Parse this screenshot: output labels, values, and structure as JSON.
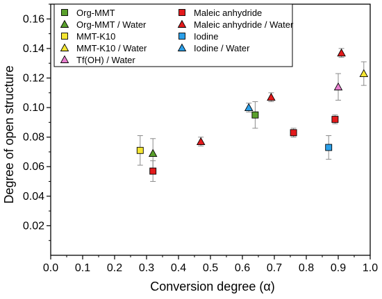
{
  "chart_data": {
    "type": "scatter",
    "title": "",
    "xlabel": "Conversion degree (α)",
    "ylabel": "Degree of open structure",
    "xlim": [
      0.0,
      1.0
    ],
    "ylim": [
      0.0,
      0.17
    ],
    "x_ticks": [
      "0.0",
      "0.1",
      "0.2",
      "0.3",
      "0.4",
      "0.5",
      "0.6",
      "0.7",
      "0.8",
      "0.9",
      "1.0"
    ],
    "y_ticks": [
      "0.02",
      "0.04",
      "0.06",
      "0.08",
      "0.10",
      "0.12",
      "0.14",
      "0.16"
    ],
    "grid": false,
    "legend_placement": "top-left, inside plot, two columns",
    "series": [
      {
        "name": "Org-MMT",
        "marker": "square",
        "color": "#5aa02c",
        "points": [
          {
            "x": 0.64,
            "y": 0.095,
            "err": 0.009
          }
        ]
      },
      {
        "name": "Org-MMT / Water",
        "marker": "triangle",
        "color": "#5aa02c",
        "points": [
          {
            "x": 0.32,
            "y": 0.069,
            "err": 0.01
          }
        ]
      },
      {
        "name": "MMT-K10",
        "marker": "square",
        "color": "#f5e633",
        "points": [
          {
            "x": 0.28,
            "y": 0.071,
            "err": 0.01
          }
        ]
      },
      {
        "name": "MMT-K10 / Water",
        "marker": "triangle",
        "color": "#f5e633",
        "points": [
          {
            "x": 0.98,
            "y": 0.123,
            "err": 0.008
          }
        ]
      },
      {
        "name": "Tf(OH) / Water",
        "marker": "triangle",
        "color": "#e87fcf",
        "points": [
          {
            "x": 0.9,
            "y": 0.114,
            "err": 0.009
          }
        ]
      },
      {
        "name": "Maleic anhydride",
        "marker": "square",
        "color": "#e31a1c",
        "points": [
          {
            "x": 0.32,
            "y": 0.057,
            "err": 0.007
          },
          {
            "x": 0.76,
            "y": 0.083,
            "err": 0.003
          },
          {
            "x": 0.89,
            "y": 0.092,
            "err": 0.003
          }
        ]
      },
      {
        "name": "Maleic anhydride / Water",
        "marker": "triangle",
        "color": "#e31a1c",
        "points": [
          {
            "x": 0.47,
            "y": 0.077,
            "err": 0.003
          },
          {
            "x": 0.69,
            "y": 0.107,
            "err": 0.003
          },
          {
            "x": 0.91,
            "y": 0.137,
            "err": 0.003
          }
        ]
      },
      {
        "name": "Iodine",
        "marker": "square",
        "color": "#2b9fe8",
        "points": [
          {
            "x": 0.87,
            "y": 0.073,
            "err": 0.008
          }
        ]
      },
      {
        "name": "Iodine / Water",
        "marker": "triangle",
        "color": "#2b9fe8",
        "points": [
          {
            "x": 0.62,
            "y": 0.1,
            "err": 0.003
          }
        ]
      }
    ]
  }
}
